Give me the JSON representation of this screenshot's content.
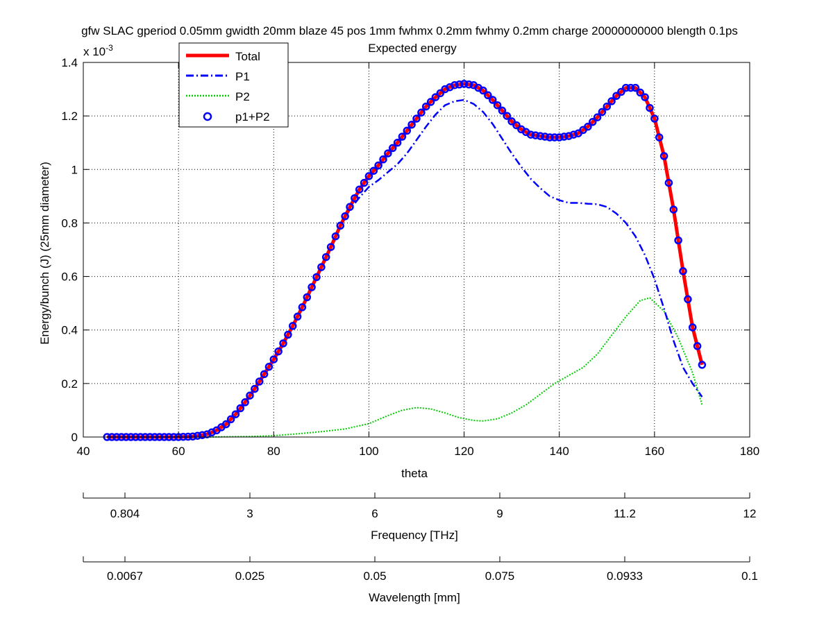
{
  "chart_data": {
    "type": "line",
    "title_line1": "gfw SLAC gperiod 0.05mm gwidth 20mm blaze 45 pos 1mm fwhmx 0.2mm fwhmy 0.2mm charge 20000000000 blength 0.1ps",
    "title_line2": "Expected energy",
    "xlabel": "theta",
    "ylabel": "Energy/bunch (J) (25mm diameter)",
    "y_exponent_label": "x 10",
    "y_exponent_power": "-3",
    "xlim": [
      40,
      180
    ],
    "ylim": [
      0,
      1.4
    ],
    "x_ticks": [
      "40",
      "60",
      "80",
      "100",
      "120",
      "140",
      "160",
      "180"
    ],
    "y_ticks": [
      "0",
      "0.2",
      "0.4",
      "0.6",
      "0.8",
      "1",
      "1.2",
      "1.4"
    ],
    "grid": true,
    "legend_position": "top-left",
    "colors": {
      "total": "#ff0000",
      "p1": "#0000ff",
      "p2": "#00cc00",
      "markers": "#0000ff"
    },
    "series": [
      {
        "name": "Total",
        "style": "solid-thick",
        "x": [
          45,
          50,
          55,
          60,
          63,
          66,
          68,
          70,
          72,
          74,
          76,
          78,
          80,
          82,
          84,
          86,
          88,
          90,
          92,
          94,
          96,
          98,
          100,
          102,
          104,
          106,
          108,
          110,
          112,
          114,
          116,
          118,
          120,
          122,
          124,
          126,
          128,
          130,
          132,
          134,
          136,
          138,
          140,
          142,
          144,
          146,
          148,
          150,
          152,
          154,
          156,
          158,
          160,
          162,
          164,
          166,
          168,
          170
        ],
        "y": [
          0,
          0,
          0,
          0,
          0.002,
          0.01,
          0.025,
          0.048,
          0.085,
          0.13,
          0.18,
          0.235,
          0.29,
          0.35,
          0.415,
          0.485,
          0.56,
          0.635,
          0.71,
          0.79,
          0.86,
          0.925,
          0.975,
          1.015,
          1.06,
          1.1,
          1.145,
          1.19,
          1.235,
          1.27,
          1.3,
          1.315,
          1.32,
          1.315,
          1.295,
          1.26,
          1.22,
          1.18,
          1.15,
          1.13,
          1.125,
          1.12,
          1.12,
          1.125,
          1.135,
          1.16,
          1.195,
          1.235,
          1.275,
          1.305,
          1.305,
          1.27,
          1.19,
          1.05,
          0.85,
          0.62,
          0.41,
          0.27
        ]
      },
      {
        "name": "P1",
        "style": "dash-dot",
        "x": [
          45,
          50,
          55,
          60,
          63,
          66,
          68,
          70,
          72,
          74,
          76,
          78,
          80,
          82,
          84,
          86,
          88,
          90,
          92,
          94,
          96,
          98,
          100,
          102,
          104,
          106,
          108,
          110,
          112,
          114,
          116,
          118,
          120,
          122,
          124,
          126,
          128,
          130,
          132,
          134,
          136,
          138,
          140,
          142,
          144,
          146,
          148,
          150,
          152,
          154,
          156,
          158,
          160,
          162,
          164,
          166,
          168,
          170
        ],
        "y": [
          0,
          0,
          0,
          0,
          0.002,
          0.01,
          0.025,
          0.048,
          0.085,
          0.13,
          0.18,
          0.235,
          0.29,
          0.35,
          0.415,
          0.485,
          0.56,
          0.635,
          0.71,
          0.785,
          0.85,
          0.895,
          0.935,
          0.96,
          0.99,
          1.02,
          1.06,
          1.11,
          1.16,
          1.205,
          1.24,
          1.255,
          1.26,
          1.245,
          1.215,
          1.17,
          1.115,
          1.06,
          1.01,
          0.965,
          0.93,
          0.9,
          0.885,
          0.875,
          0.875,
          0.872,
          0.87,
          0.86,
          0.835,
          0.8,
          0.75,
          0.68,
          0.59,
          0.48,
          0.36,
          0.26,
          0.2,
          0.15
        ]
      },
      {
        "name": "P2",
        "style": "dotted",
        "x": [
          45,
          60,
          66,
          70,
          75,
          80,
          85,
          90,
          95,
          100,
          104,
          107,
          110,
          113,
          116,
          119,
          122,
          124,
          127,
          130,
          133,
          136,
          139,
          142,
          145,
          148,
          151,
          154,
          157,
          159,
          162,
          165,
          168,
          170
        ],
        "y": [
          0,
          0,
          0,
          0.001,
          0.002,
          0.005,
          0.012,
          0.02,
          0.03,
          0.05,
          0.08,
          0.1,
          0.11,
          0.105,
          0.09,
          0.072,
          0.062,
          0.06,
          0.068,
          0.09,
          0.12,
          0.16,
          0.2,
          0.23,
          0.26,
          0.31,
          0.38,
          0.45,
          0.51,
          0.52,
          0.47,
          0.37,
          0.24,
          0.12
        ]
      },
      {
        "name": "p1+P2",
        "style": "circle-markers",
        "x_start": 45,
        "x_end": 170,
        "x_step": 1
      }
    ],
    "secondary_axes": [
      {
        "label": "Frequency [THz]",
        "tick_labels": [
          "0.804",
          "3",
          "6",
          "9",
          "11.2",
          "12"
        ]
      },
      {
        "label": "Wavelength [mm]",
        "tick_labels": [
          "0.0067",
          "0.025",
          "0.05",
          "0.075",
          "0.0933",
          "0.1"
        ]
      }
    ]
  }
}
